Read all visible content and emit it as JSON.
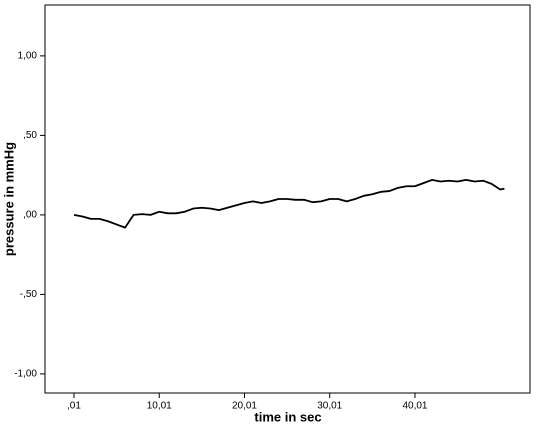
{
  "chart_data": {
    "type": "line",
    "xlabel": "time in sec",
    "ylabel": "pressure in mmHg",
    "x": [
      0.01,
      1,
      2,
      3,
      4,
      5,
      6,
      7,
      8,
      9,
      10,
      11,
      12,
      13,
      14,
      15,
      16,
      17,
      18,
      19,
      20,
      21,
      22,
      23,
      24,
      25,
      26,
      27,
      28,
      29,
      30,
      31,
      32,
      33,
      34,
      35,
      36,
      37,
      38,
      39,
      40,
      41,
      42,
      43,
      44,
      45,
      46,
      47,
      48,
      49,
      50,
      50.5
    ],
    "series": [
      {
        "color": "#000000",
        "values": [
          0.0,
          -0.01,
          -0.025,
          -0.025,
          -0.04,
          -0.06,
          -0.08,
          0.0,
          0.005,
          0.0,
          0.02,
          0.01,
          0.01,
          0.02,
          0.04,
          0.045,
          0.04,
          0.03,
          0.045,
          0.06,
          0.075,
          0.085,
          0.075,
          0.085,
          0.1,
          0.1,
          0.095,
          0.095,
          0.08,
          0.085,
          0.1,
          0.1,
          0.085,
          0.1,
          0.12,
          0.13,
          0.145,
          0.15,
          0.17,
          0.18,
          0.18,
          0.2,
          0.22,
          0.21,
          0.215,
          0.21,
          0.22,
          0.21,
          0.215,
          0.195,
          0.16,
          0.165
        ]
      }
    ],
    "xlim": [
      -3.39,
      53.5
    ],
    "xticks": [
      {
        "value": 0.01,
        "label": ",01"
      },
      {
        "value": 10.01,
        "label": "10,01"
      },
      {
        "value": 20.01,
        "label": "20,01"
      },
      {
        "value": 30.01,
        "label": "30,01"
      },
      {
        "value": 40.01,
        "label": "40,01"
      }
    ],
    "ylim": [
      -1.12,
      1.32
    ],
    "yticks": [
      {
        "value": 1,
        "label": "1,00"
      },
      {
        "value": 0.5,
        "label": ",50"
      },
      {
        "value": 0,
        "label": ",00"
      },
      {
        "value": -0.5,
        "label": "-,50"
      },
      {
        "value": -1,
        "label": "-1,00"
      }
    ],
    "grid": false
  }
}
